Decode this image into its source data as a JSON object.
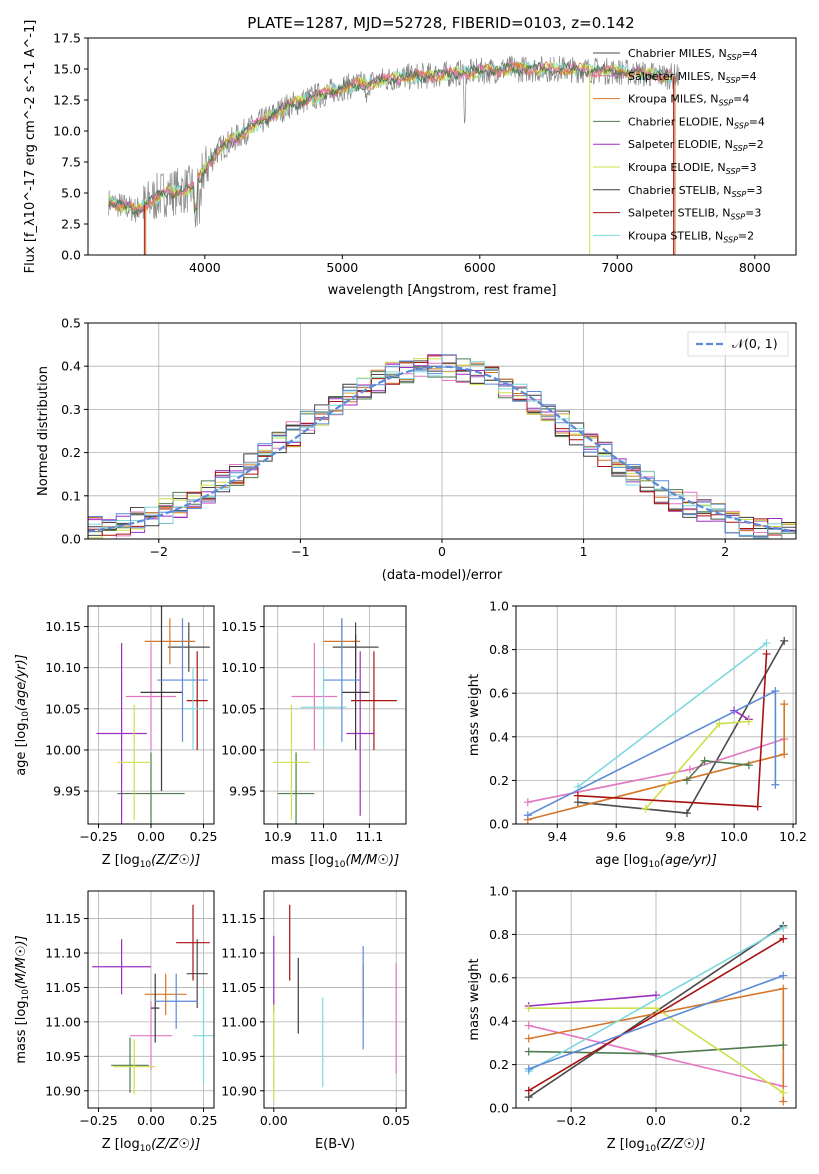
{
  "figure": {
    "title": "PLATE=1287, MJD=52728, FIBERID=0103, z=0.142"
  },
  "colors": {
    "Chabrier MILES": "#4a4a4a",
    "Salpeter MILES": "#e377c2",
    "Kroupa MILES": "#d4772a",
    "Chabrier ELODIE": "#4f7a4f",
    "Salpeter ELODIE": "#9b30c0",
    "Kroupa ELODIE": "#cfe04a",
    "Chabrier STELIB": "#3a3a3a",
    "Salpeter STELIB": "#aa1111",
    "Kroupa STELIB": "#7fd8dc",
    "normal": "#5b8ad8"
  },
  "chart_data": [
    {
      "id": "spectrum",
      "type": "line",
      "xlabel": "wavelength [Angstrom, rest frame]",
      "ylabel": "Flux [f_λ10^-17 erg cm^-2 s^-1 A^-1]",
      "xlim": [
        3150,
        8300
      ],
      "ylim": [
        0,
        17.5
      ],
      "xticks": [
        "4000",
        "5000",
        "6000",
        "7000",
        "8000"
      ],
      "yticks": [
        "0.0",
        "2.5",
        "5.0",
        "7.5",
        "10.0",
        "12.5",
        "15.0",
        "17.5"
      ],
      "grid": false,
      "legend_position": "upper-right",
      "series": [
        {
          "name": "Chabrier MILES",
          "nssp": "4"
        },
        {
          "name": "Salpeter MILES",
          "nssp": "4"
        },
        {
          "name": "Kroupa MILES",
          "nssp": "4"
        },
        {
          "name": "Chabrier ELODIE",
          "nssp": "4"
        },
        {
          "name": "Salpeter ELODIE",
          "nssp": "2"
        },
        {
          "name": "Kroupa ELODIE",
          "nssp": "3"
        },
        {
          "name": "Chabrier STELIB",
          "nssp": "3"
        },
        {
          "name": "Salpeter STELIB",
          "nssp": "3"
        },
        {
          "name": "Kroupa STELIB",
          "nssp": "2"
        }
      ],
      "data_trend": {
        "x": [
          3300,
          3500,
          3700,
          3900,
          4100,
          4300,
          4600,
          5000,
          5400,
          5800,
          6200,
          6600,
          7000,
          7400
        ],
        "y": [
          4.3,
          3.6,
          5.0,
          5.3,
          8.5,
          10.0,
          12.0,
          13.5,
          14.3,
          14.6,
          15.0,
          15.0,
          14.8,
          14.4
        ]
      }
    },
    {
      "id": "residuals",
      "type": "histogram",
      "xlabel": "(data-model)/error",
      "ylabel": "Normed distribution",
      "xlim": [
        -2.5,
        2.5
      ],
      "ylim": [
        0,
        0.5
      ],
      "xticks": [
        "−2",
        "−1",
        "0",
        "1",
        "2"
      ],
      "yticks": [
        "0.0",
        "0.1",
        "0.2",
        "0.3",
        "0.4",
        "0.5"
      ],
      "grid": true,
      "legend_label": "𝒩(0, 1)",
      "bin_width": 0.1
    },
    {
      "id": "age_vs_Z",
      "type": "errorbar",
      "xlabel": "Z [log10(Z/Z☉)]",
      "ylabel": "age [log10(age/yr)]",
      "xlim": [
        -0.3,
        0.3
      ],
      "ylim": [
        9.91,
        10.175
      ],
      "xticks": [
        "−0.25",
        "0.00",
        "0.25"
      ],
      "yticks": [
        "9.95",
        "10.00",
        "10.05",
        "10.10",
        "10.15"
      ],
      "points": [
        {
          "model": "Chabrier MILES",
          "x": 0.18,
          "xerr": 0.1,
          "y": 10.125,
          "yerr": 0.03
        },
        {
          "model": "Salpeter MILES",
          "x": 0.0,
          "xerr": 0.12,
          "y": 10.065,
          "yerr": 0.065
        },
        {
          "model": "Kroupa MILES",
          "x": 0.09,
          "xerr": 0.12,
          "y": 10.132,
          "yerr": 0.028
        },
        {
          "model": "Chabrier ELODIE",
          "x": 0.0,
          "xerr": 0.16,
          "y": 9.947,
          "yerr": 0.05
        },
        {
          "model": "Salpeter ELODIE",
          "x": -0.14,
          "xerr": 0.12,
          "y": 10.02,
          "yerr": 0.11
        },
        {
          "model": "Kroupa ELODIE",
          "x": -0.08,
          "xerr": 0.08,
          "y": 9.985,
          "yerr": 0.07
        },
        {
          "model": "Chabrier STELIB",
          "x": 0.05,
          "xerr": 0.1,
          "y": 10.07,
          "yerr": 0.12
        },
        {
          "model": "Salpeter STELIB",
          "x": 0.22,
          "xerr": 0.05,
          "y": 10.06,
          "yerr": 0.06
        },
        {
          "model": "Kroupa STELIB",
          "x": 0.2,
          "xerr": 0.05,
          "y": 10.05,
          "yerr": 0.05
        },
        {
          "model": "normal",
          "x": 0.15,
          "xerr": 0.12,
          "y": 10.085,
          "yerr": 0.075
        }
      ]
    },
    {
      "id": "age_vs_mass",
      "type": "errorbar",
      "xlabel": "mass [log10(M/M☉)]",
      "ylabel": "",
      "xlim": [
        10.87,
        11.18
      ],
      "ylim": [
        9.91,
        10.175
      ],
      "xticks": [
        "10.9",
        "11.0",
        "11.1"
      ],
      "yticks": [
        "9.95",
        "10.00",
        "10.05",
        "10.10",
        "10.15"
      ],
      "points": [
        {
          "model": "Chabrier MILES",
          "x": 11.07,
          "xerr": 0.05,
          "y": 10.125,
          "yerr": 0.03
        },
        {
          "model": "Salpeter MILES",
          "x": 10.98,
          "xerr": 0.05,
          "y": 10.065,
          "yerr": 0.065
        },
        {
          "model": "Kroupa MILES",
          "x": 11.04,
          "xerr": 0.04,
          "y": 10.132,
          "yerr": 0.028
        },
        {
          "model": "Chabrier ELODIE",
          "x": 10.94,
          "xerr": 0.04,
          "y": 9.947,
          "yerr": 0.05
        },
        {
          "model": "Salpeter ELODIE",
          "x": 11.08,
          "xerr": 0.03,
          "y": 10.02,
          "yerr": 0.1
        },
        {
          "model": "Kroupa ELODIE",
          "x": 10.93,
          "xerr": 0.04,
          "y": 9.985,
          "yerr": 0.07
        },
        {
          "model": "Chabrier STELIB",
          "x": 11.07,
          "xerr": 0.03,
          "y": 10.07,
          "yerr": 0.07
        },
        {
          "model": "Salpeter STELIB",
          "x": 11.11,
          "xerr": 0.05,
          "y": 10.06,
          "yerr": 0.06
        },
        {
          "model": "Kroupa STELIB",
          "x": 11.0,
          "xerr": 0.05,
          "y": 10.052,
          "yerr": 0.05
        },
        {
          "model": "normal",
          "x": 11.04,
          "xerr": 0.04,
          "y": 10.085,
          "yerr": 0.075
        }
      ]
    },
    {
      "id": "weight_vs_age",
      "type": "line",
      "xlabel": "age [log10(age/yr)]",
      "ylabel": "mass weight",
      "xlim": [
        9.26,
        10.21
      ],
      "ylim": [
        0,
        1
      ],
      "xticks": [
        "9.4",
        "9.6",
        "9.8",
        "10.0",
        "10.2"
      ],
      "yticks": [
        "0.0",
        "0.2",
        "0.4",
        "0.6",
        "0.8",
        "1.0"
      ],
      "grid": true,
      "series": [
        {
          "model": "Chabrier MILES",
          "x": [
            9.47,
            9.84,
            10.17
          ],
          "y": [
            0.1,
            0.05,
            0.84
          ]
        },
        {
          "model": "Salpeter MILES",
          "x": [
            9.3,
            9.85,
            10.17
          ],
          "y": [
            0.1,
            0.25,
            0.39
          ]
        },
        {
          "model": "Kroupa MILES",
          "x": [
            9.3,
            10.17,
            10.17
          ],
          "y": [
            0.02,
            0.32,
            0.55
          ]
        },
        {
          "model": "Chabrier ELODIE",
          "x": [
            9.84,
            9.9,
            10.05
          ],
          "y": [
            0.2,
            0.29,
            0.27
          ]
        },
        {
          "model": "Salpeter ELODIE",
          "x": [
            10.0,
            10.05
          ],
          "y": [
            0.52,
            0.48
          ]
        },
        {
          "model": "Kroupa ELODIE",
          "x": [
            9.7,
            9.95,
            10.05
          ],
          "y": [
            0.07,
            0.46,
            0.47
          ]
        },
        {
          "model": "Salpeter STELIB",
          "x": [
            9.47,
            10.08,
            10.11
          ],
          "y": [
            0.13,
            0.08,
            0.78
          ]
        },
        {
          "model": "Kroupa STELIB",
          "x": [
            9.47,
            10.11
          ],
          "y": [
            0.17,
            0.83
          ]
        },
        {
          "model": "normal",
          "x": [
            9.3,
            10.14,
            10.14
          ],
          "y": [
            0.04,
            0.61,
            0.18
          ]
        }
      ]
    },
    {
      "id": "mass_vs_Z",
      "type": "errorbar",
      "xlabel": "Z [log10(Z/Z☉)]",
      "ylabel": "mass [log10(M/M☉)]",
      "xlim": [
        -0.3,
        0.3
      ],
      "ylim": [
        10.875,
        11.19
      ],
      "xticks": [
        "−0.25",
        "0.00",
        "0.25"
      ],
      "yticks": [
        "10.90",
        "10.95",
        "11.00",
        "11.05",
        "11.10",
        "11.15"
      ],
      "points": [
        {
          "model": "Chabrier MILES",
          "x": 0.22,
          "xerr": 0.05,
          "y": 11.07,
          "yerr": 0.05
        },
        {
          "model": "Salpeter MILES",
          "x": 0.0,
          "xerr": 0.1,
          "y": 10.98,
          "yerr": 0.05
        },
        {
          "model": "Kroupa MILES",
          "x": 0.07,
          "xerr": 0.1,
          "y": 11.04,
          "yerr": 0.03
        },
        {
          "model": "Chabrier ELODIE",
          "x": -0.1,
          "xerr": 0.09,
          "y": 10.937,
          "yerr": 0.04
        },
        {
          "model": "Salpeter ELODIE",
          "x": -0.14,
          "xerr": 0.14,
          "y": 11.08,
          "yerr": 0.04
        },
        {
          "model": "Kroupa ELODIE",
          "x": -0.08,
          "xerr": 0.1,
          "y": 10.935,
          "yerr": 0.04
        },
        {
          "model": "Chabrier STELIB",
          "x": 0.02,
          "xerr": 0.02,
          "y": 11.02,
          "yerr": 0.05
        },
        {
          "model": "Salpeter STELIB",
          "x": 0.2,
          "xerr": 0.08,
          "y": 11.115,
          "yerr": 0.055
        },
        {
          "model": "Kroupa STELIB",
          "x": 0.25,
          "xerr": 0.05,
          "y": 10.98,
          "yerr": 0.07
        },
        {
          "model": "normal",
          "x": 0.12,
          "xerr": 0.1,
          "y": 11.03,
          "yerr": 0.04
        }
      ]
    },
    {
      "id": "mass_vs_EBV",
      "type": "errorbar",
      "xlabel": "E(B-V)",
      "ylabel": "",
      "xlim": [
        -0.004,
        0.054
      ],
      "ylim": [
        10.875,
        11.19
      ],
      "xticks": [
        "0.00",
        "0.05"
      ],
      "yticks": [
        "10.90",
        "10.95",
        "11.00",
        "11.05",
        "11.10",
        "11.15"
      ],
      "points": [
        {
          "model": "Salpeter ELODIE",
          "x": 0.0,
          "y": 11.07,
          "yerr": 0.055
        },
        {
          "model": "Kroupa ELODIE",
          "x": 0.0,
          "y": 10.955,
          "yerr": 0.07
        },
        {
          "model": "Salpeter STELIB",
          "x": 0.0065,
          "y": 11.115,
          "yerr": 0.055
        },
        {
          "model": "Chabrier STELIB",
          "x": 0.01,
          "y": 11.038,
          "yerr": 0.055
        },
        {
          "model": "Kroupa STELIB",
          "x": 0.02,
          "y": 10.97,
          "yerr": 0.065
        },
        {
          "model": "Kroupa MILES",
          "x": 0.0365,
          "y": 11.045,
          "yerr": 0.04
        },
        {
          "model": "normal",
          "x": 0.0365,
          "y": 11.035,
          "yerr": 0.075
        },
        {
          "model": "Salpeter MILES",
          "x": 0.05,
          "y": 11.005,
          "yerr": 0.08
        }
      ]
    },
    {
      "id": "weight_vs_Z",
      "type": "line",
      "xlabel": "Z [log10(Z/Z☉)]",
      "ylabel": "mass weight",
      "xlim": [
        -0.33,
        0.33
      ],
      "ylim": [
        0,
        1
      ],
      "xticks": [
        "−0.2",
        "0.0",
        "0.2"
      ],
      "yticks": [
        "0.0",
        "0.2",
        "0.4",
        "0.6",
        "0.8",
        "1.0"
      ],
      "grid": true,
      "series": [
        {
          "model": "Chabrier MILES",
          "x": [
            -0.3,
            0.3
          ],
          "y": [
            0.05,
            0.84
          ]
        },
        {
          "model": "Salpeter MILES",
          "x": [
            -0.3,
            0.3
          ],
          "y": [
            0.38,
            0.1
          ]
        },
        {
          "model": "Kroupa MILES",
          "x": [
            -0.3,
            0.3,
            0.3
          ],
          "y": [
            0.32,
            0.55,
            0.03
          ]
        },
        {
          "model": "Chabrier ELODIE",
          "x": [
            -0.3,
            0.0,
            0.3
          ],
          "y": [
            0.26,
            0.25,
            0.29
          ]
        },
        {
          "model": "Salpeter ELODIE",
          "x": [
            -0.3,
            0.0
          ],
          "y": [
            0.47,
            0.52
          ]
        },
        {
          "model": "Kroupa ELODIE",
          "x": [
            -0.3,
            0.0,
            0.3
          ],
          "y": [
            0.46,
            0.46,
            0.07
          ]
        },
        {
          "model": "Salpeter STELIB",
          "x": [
            -0.3,
            0.3
          ],
          "y": [
            0.08,
            0.78
          ]
        },
        {
          "model": "Kroupa STELIB",
          "x": [
            -0.3,
            0.3
          ],
          "y": [
            0.17,
            0.83
          ]
        },
        {
          "model": "normal",
          "x": [
            -0.3,
            0.3
          ],
          "y": [
            0.18,
            0.61
          ]
        }
      ]
    }
  ]
}
